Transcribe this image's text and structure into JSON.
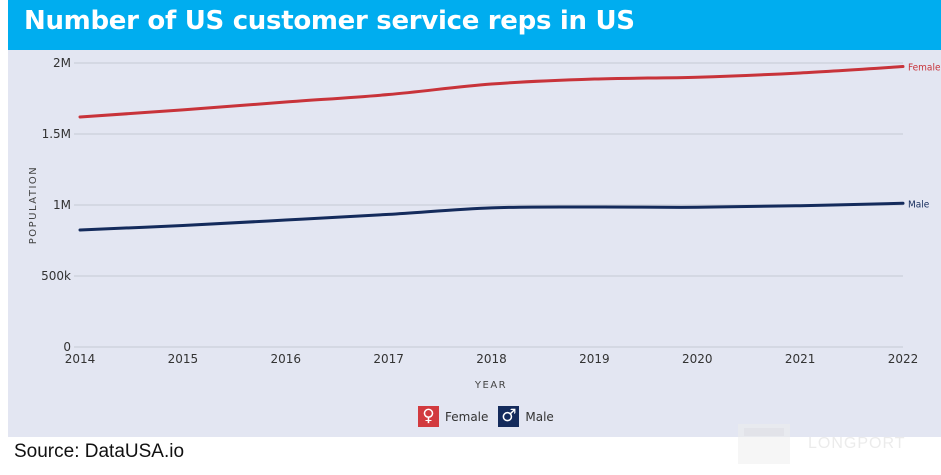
{
  "header": {
    "title": "Number of US customer service reps in US"
  },
  "source": "Source: DataUSA.io",
  "watermark": "LONGPORT",
  "colors": {
    "header_bg": "#00adef",
    "panel_bg": "#e3e6f2",
    "female": "#c8333a",
    "male": "#142b5c"
  },
  "legend": [
    {
      "label": "Female",
      "icon": "female-symbol-icon",
      "glyph": "♀",
      "color": "#d23a3f"
    },
    {
      "label": "Male",
      "icon": "male-symbol-icon",
      "glyph": "♂",
      "color": "#142b5c"
    }
  ],
  "chart_data": {
    "type": "line",
    "title": "Number of US customer service reps in US",
    "xlabel": "YEAR",
    "ylabel": "POPULATION",
    "x": [
      2014,
      2015,
      2016,
      2017,
      2018,
      2019,
      2020,
      2021,
      2022
    ],
    "x_tick_labels": [
      "2014",
      "2015",
      "2016",
      "2017",
      "2018",
      "2019",
      "2020",
      "2021",
      "2022"
    ],
    "ylim": [
      0,
      2000000
    ],
    "y_ticks": [
      0,
      500000,
      1000000,
      1500000,
      2000000
    ],
    "y_tick_labels": [
      "0",
      "500k",
      "1M",
      "1.5M",
      "2M"
    ],
    "grid": true,
    "legend_position": "bottom",
    "series": [
      {
        "name": "Female",
        "end_label": "Female",
        "color": "#c8333a",
        "values": [
          1620000,
          1670000,
          1725000,
          1778000,
          1852000,
          1887000,
          1900000,
          1930000,
          1975000
        ]
      },
      {
        "name": "Male",
        "end_label": "Male",
        "color": "#142b5c",
        "values": [
          824000,
          856000,
          894000,
          934000,
          980000,
          986000,
          984000,
          995000,
          1012000
        ]
      }
    ]
  }
}
